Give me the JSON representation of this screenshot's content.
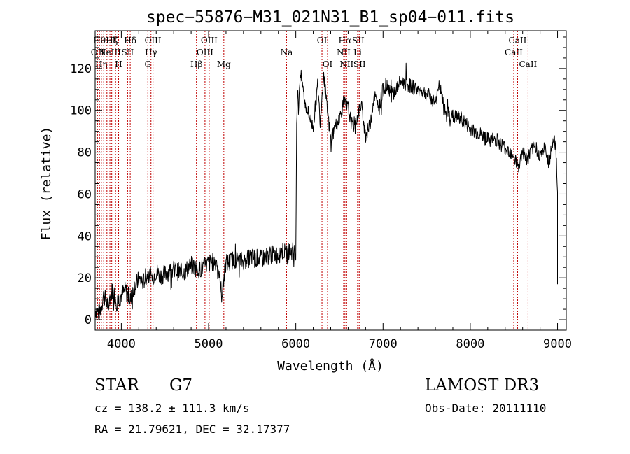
{
  "chart_data": {
    "type": "line",
    "title": "spec−55876−M31_021N31_B1_sp04−011.fits",
    "xlabel": "Wavelength (Å)",
    "ylabel": "Flux (relative)",
    "xlim": [
      3700,
      9100
    ],
    "ylim": [
      -5,
      138
    ],
    "xticks": [
      4000,
      5000,
      6000,
      7000,
      8000,
      9000
    ],
    "yticks": [
      0,
      20,
      40,
      60,
      80,
      100,
      120
    ],
    "grid": false,
    "colors": {
      "spectrum": "#000000",
      "line_marker": "#c00000"
    },
    "series": [
      {
        "name": "flux",
        "x": [
          3700,
          3750,
          3800,
          3850,
          3900,
          3950,
          4000,
          4050,
          4100,
          4150,
          4200,
          4250,
          4300,
          4350,
          4400,
          4450,
          4500,
          4600,
          4700,
          4800,
          4900,
          5000,
          5100,
          5150,
          5200,
          5300,
          5400,
          5500,
          5600,
          5700,
          5800,
          5850,
          5900,
          5950,
          6000,
          6010,
          6020,
          6030,
          6050,
          6080,
          6100,
          6150,
          6200,
          6250,
          6280,
          6320,
          6350,
          6400,
          6450,
          6500,
          6550,
          6600,
          6650,
          6700,
          6750,
          6800,
          6850,
          6900,
          6950,
          7000,
          7050,
          7100,
          7150,
          7200,
          7300,
          7400,
          7500,
          7600,
          7650,
          7700,
          7800,
          7900,
          8000,
          8100,
          8200,
          8300,
          8400,
          8500,
          8550,
          8600,
          8650,
          8700,
          8750,
          8800,
          8850,
          8900,
          8950,
          8980,
          9000
        ],
        "y": [
          5,
          3,
          12,
          6,
          15,
          8,
          12,
          14,
          9,
          16,
          19,
          18,
          22,
          20,
          23,
          21,
          22,
          24,
          22,
          26,
          24,
          27,
          28,
          12,
          27,
          29,
          28,
          30,
          29,
          31,
          31,
          33,
          31,
          33,
          32,
          95,
          110,
          100,
          118,
          112,
          104,
          98,
          92,
          112,
          95,
          118,
          104,
          86,
          92,
          96,
          104,
          101,
          92,
          96,
          103,
          88,
          93,
          108,
          100,
          110,
          112,
          108,
          110,
          114,
          112,
          110,
          108,
          104,
          112,
          100,
          97,
          96,
          91,
          89,
          86,
          86,
          82,
          79,
          72,
          81,
          76,
          81,
          83,
          78,
          82,
          75,
          86,
          84,
          61
        ]
      }
    ],
    "lines": [
      {
        "w": 3727,
        "label": "OII",
        "row": 1
      },
      {
        "w": 3750,
        "label": "Hθ",
        "row": 0
      },
      {
        "w": 3771,
        "label": "Hη",
        "row": 2
      },
      {
        "w": 3798,
        "label": "",
        "row": 0
      },
      {
        "w": 3835,
        "label": "",
        "row": 0
      },
      {
        "w": 3869,
        "label": "NeIII",
        "row": 1
      },
      {
        "w": 3890,
        "label": "Hζ",
        "row": 0
      },
      {
        "w": 3934,
        "label": "K",
        "row": 0
      },
      {
        "w": 3969,
        "label": "H",
        "row": 2
      },
      {
        "w": 4072,
        "label": "SII",
        "row": 1
      },
      {
        "w": 4102,
        "label": "Hδ",
        "row": 0
      },
      {
        "w": 4304,
        "label": "G",
        "row": 2
      },
      {
        "w": 4340,
        "label": "Hγ",
        "row": 1
      },
      {
        "w": 4363,
        "label": "OIII",
        "row": 0
      },
      {
        "w": 4861,
        "label": "Hβ",
        "row": 2
      },
      {
        "w": 4959,
        "label": "OIII",
        "row": 1
      },
      {
        "w": 5007,
        "label": "OIII",
        "row": 0
      },
      {
        "w": 5175,
        "label": "Mg",
        "row": 2
      },
      {
        "w": 5894,
        "label": "Na",
        "row": 1
      },
      {
        "w": 6300,
        "label": "OI",
        "row": 0
      },
      {
        "w": 6364,
        "label": "OI",
        "row": 2
      },
      {
        "w": 6548,
        "label": "NII",
        "row": 1
      },
      {
        "w": 6563,
        "label": "Hα",
        "row": 0
      },
      {
        "w": 6583,
        "label": "NII",
        "row": 2
      },
      {
        "w": 6708,
        "label": "Li",
        "row": 1
      },
      {
        "w": 6716,
        "label": "SII",
        "row": 0
      },
      {
        "w": 6731,
        "label": "SII",
        "row": 2
      },
      {
        "w": 8498,
        "label": "CaII",
        "row": 1
      },
      {
        "w": 8542,
        "label": "CaII",
        "row": 0
      },
      {
        "w": 8662,
        "label": "CaII",
        "row": 2
      }
    ]
  },
  "info": {
    "class_label": "STAR",
    "subclass": "G7",
    "survey": "LAMOST DR3",
    "cz": "cz = 138.2 ± 111.3 km/s",
    "obs_date": "Obs-Date: 20111110",
    "coords": "RA =  21.79621, DEC =  32.17377"
  }
}
